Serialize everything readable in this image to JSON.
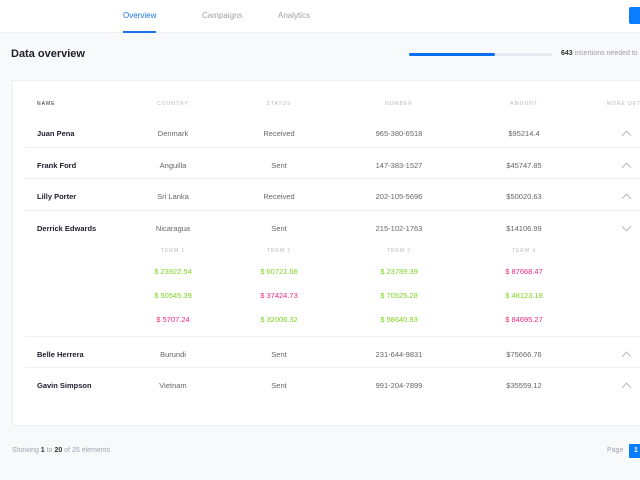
{
  "nav": {
    "tabs": [
      "Overview",
      "Campaigns",
      "Analytics"
    ],
    "active": "Overview"
  },
  "header": {
    "title": "Data overview",
    "progress_percent": 60,
    "insertions_count": "643",
    "insertions_text": " insertions needed to"
  },
  "table": {
    "columns": [
      "NAME",
      "COUNTRY",
      "STATUS",
      "NUMBER",
      "AMOUNT",
      "MORE DETA"
    ],
    "rows": [
      {
        "name": "Juan Pena",
        "country": "Denmark",
        "status": "Received",
        "number": "965-380-6518",
        "amount": "$95214.4",
        "expanded": false
      },
      {
        "name": "Frank Ford",
        "country": "Anguilla",
        "status": "Sent",
        "number": "147-383-1527",
        "amount": "$45747.85",
        "expanded": false
      },
      {
        "name": "Lilly Porter",
        "country": "Sri Lanka",
        "status": "Received",
        "number": "202-105-5696",
        "amount": "$50020.63",
        "expanded": false
      },
      {
        "name": "Derrick Edwards",
        "country": "Nicaragua",
        "status": "Sent",
        "number": "215-102-1763",
        "amount": "$14106.99",
        "expanded": true
      },
      {
        "name": "Belle Herrera",
        "country": "Burundi",
        "status": "Sent",
        "number": "231-644-9831",
        "amount": "$75666.76",
        "expanded": false
      },
      {
        "name": "Gavin Simpson",
        "country": "Vietnam",
        "status": "Sent",
        "number": "991-204-7899",
        "amount": "$35559.12",
        "expanded": false
      }
    ],
    "details": {
      "terms": [
        "TERM 1",
        "TERM 2",
        "TERM 3",
        "TERM 4"
      ],
      "values": [
        [
          {
            "v": "$ 23922.54",
            "c": "g"
          },
          {
            "v": "$ 60721.66",
            "c": "g"
          },
          {
            "v": "$ 23789.39",
            "c": "g"
          },
          {
            "v": "$ 87668.47",
            "c": "r"
          }
        ],
        [
          {
            "v": "$ 50545.39",
            "c": "g"
          },
          {
            "v": "$ 37424.73",
            "c": "r"
          },
          {
            "v": "$ 70525.28",
            "c": "g"
          },
          {
            "v": "$ 48123.18",
            "c": "g"
          }
        ],
        [
          {
            "v": "$ 5707.24",
            "c": "r"
          },
          {
            "v": "$ 32006.32",
            "c": "g"
          },
          {
            "v": "$ 58640.93",
            "c": "g"
          },
          {
            "v": "$ 84695.27",
            "c": "r"
          }
        ]
      ],
      "colors": {
        "g": "#7ed321",
        "r": "#f0287a"
      }
    }
  },
  "footer": {
    "showing": "Showing ",
    "from": "1",
    "to_text": " to ",
    "to": "20",
    "of_text": " of 25 elements",
    "page_label": "Page",
    "page": "1"
  },
  "colors": {
    "accent": "#0a7cff"
  }
}
